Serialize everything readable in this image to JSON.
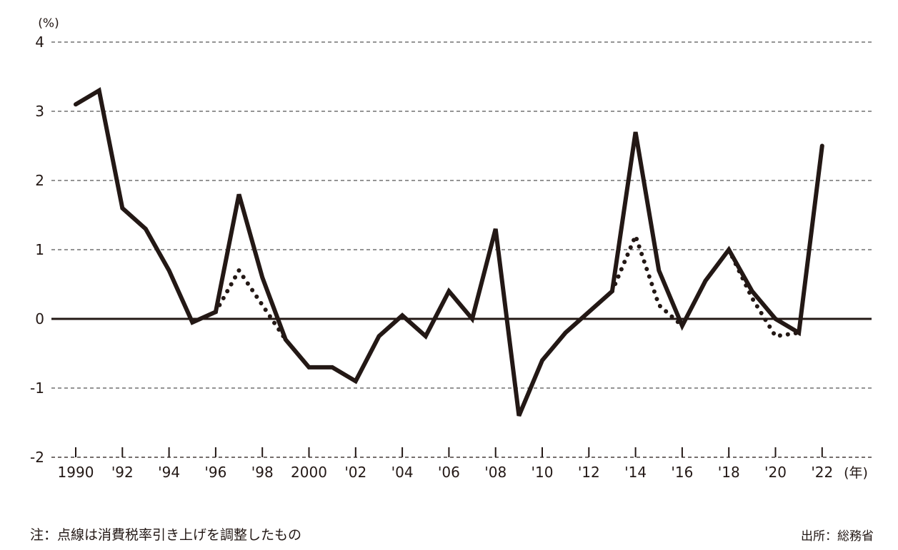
{
  "chart_data": {
    "type": "line",
    "y_unit_label": "(%)",
    "x_unit_label": "(年)",
    "ylim": [
      -2,
      4
    ],
    "yticks": [
      -2,
      -1,
      0,
      1,
      2,
      3,
      4
    ],
    "ytick_labels": [
      "-2",
      "-1",
      "0",
      "1",
      "2",
      "3",
      "4"
    ],
    "grid": "horizontal-dashed",
    "x": [
      1990,
      1991,
      1992,
      1993,
      1994,
      1995,
      1996,
      1997,
      1998,
      1999,
      2000,
      2001,
      2002,
      2003,
      2004,
      2005,
      2006,
      2007,
      2008,
      2009,
      2010,
      2011,
      2012,
      2013,
      2014,
      2015,
      2016,
      2017,
      2018,
      2019,
      2020,
      2021,
      2022
    ],
    "xticks": [
      1990,
      1992,
      1994,
      1996,
      1998,
      2000,
      2002,
      2004,
      2006,
      2008,
      2010,
      2012,
      2014,
      2016,
      2018,
      2020,
      2022
    ],
    "xtick_labels": [
      "1990",
      "'92",
      "'94",
      "'96",
      "'98",
      "2000",
      "'02",
      "'04",
      "'06",
      "'08",
      "'10",
      "'12",
      "'14",
      "'16",
      "'18",
      "'20",
      "'22"
    ],
    "series": [
      {
        "style": "solid",
        "values": [
          3.1,
          3.3,
          1.6,
          1.3,
          0.7,
          -0.05,
          0.1,
          1.8,
          0.6,
          -0.3,
          -0.7,
          -0.7,
          -0.9,
          -0.25,
          0.05,
          -0.25,
          0.4,
          0.0,
          1.3,
          -1.4,
          -0.6,
          -0.2,
          0.1,
          0.4,
          2.7,
          0.7,
          -0.1,
          0.55,
          1.0,
          0.4,
          0.0,
          -0.2,
          2.5
        ]
      },
      {
        "style": "dotted",
        "x": [
          1996,
          1997,
          1998,
          1999,
          2013,
          2014,
          2015,
          2016,
          2018,
          2019,
          2020,
          2021
        ],
        "values": [
          0.1,
          0.7,
          0.2,
          -0.3,
          0.4,
          1.2,
          0.2,
          -0.1,
          1.0,
          0.3,
          -0.25,
          -0.2
        ]
      }
    ]
  },
  "footer": {
    "note": "注：点線は消費税率引き上げを調整したもの",
    "source": "出所：総務省"
  }
}
